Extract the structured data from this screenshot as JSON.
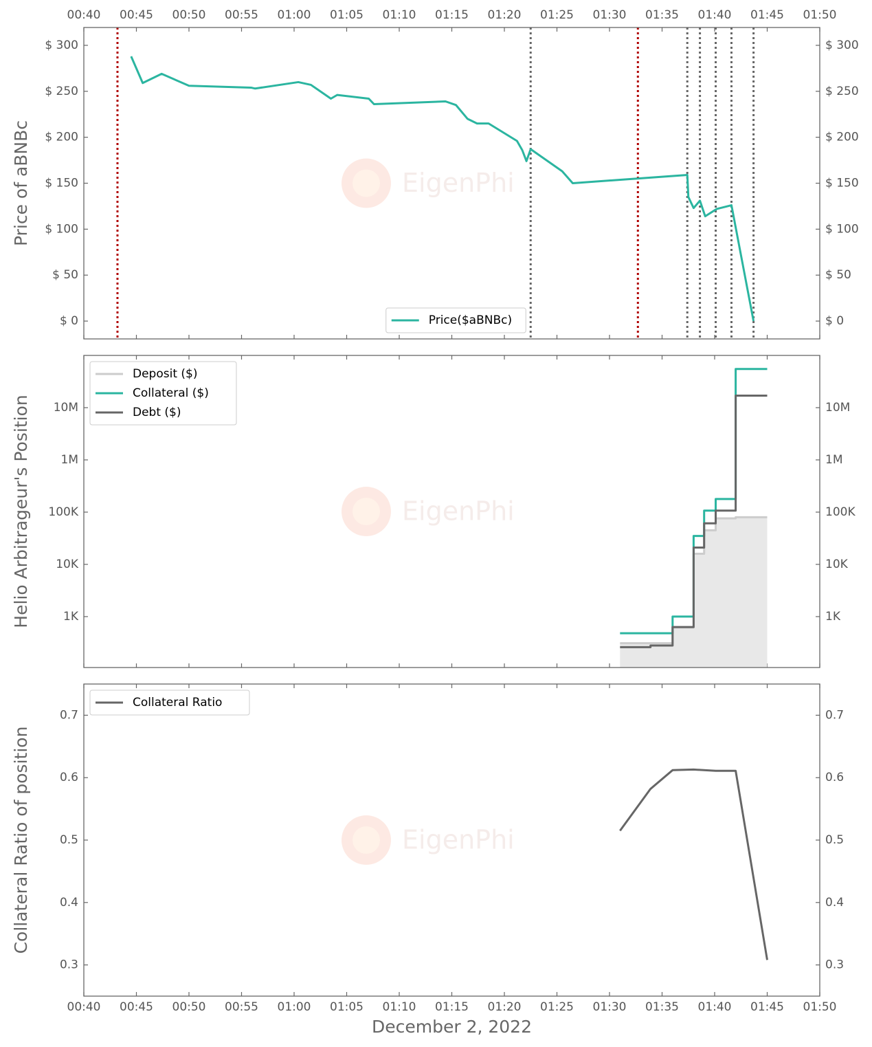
{
  "watermark": "EigenPhi",
  "chart_data": [
    {
      "type": "line",
      "ylabel": "Price of aBNBc",
      "xtick_labels": "top",
      "legend": "lower center",
      "xlim": [
        40,
        110
      ],
      "xticks": [
        {
          "value": 40,
          "label": "00:40"
        },
        {
          "value": 45,
          "label": "00:45"
        },
        {
          "value": 50,
          "label": "00:50"
        },
        {
          "value": 55,
          "label": "00:55"
        },
        {
          "value": 60,
          "label": "01:00"
        },
        {
          "value": 65,
          "label": "01:05"
        },
        {
          "value": 70,
          "label": "01:10"
        },
        {
          "value": 75,
          "label": "01:15"
        },
        {
          "value": 80,
          "label": "01:20"
        },
        {
          "value": 85,
          "label": "01:25"
        },
        {
          "value": 90,
          "label": "01:30"
        },
        {
          "value": 95,
          "label": "01:35"
        },
        {
          "value": 100,
          "label": "01:40"
        },
        {
          "value": 105,
          "label": "01:45"
        },
        {
          "value": 110,
          "label": "01:50"
        }
      ],
      "ylim": [
        -19.4,
        319.4
      ],
      "yticks": [
        {
          "value": 0,
          "label": "$ 0"
        },
        {
          "value": 50,
          "label": "$ 50"
        },
        {
          "value": 100,
          "label": "$ 100"
        },
        {
          "value": 150,
          "label": "$ 150"
        },
        {
          "value": 200,
          "label": "$ 200"
        },
        {
          "value": 250,
          "label": "$ 250"
        },
        {
          "value": 300,
          "label": "$ 300"
        }
      ],
      "x": [
        44.5,
        45.6,
        47.4,
        50.0,
        55.9,
        56.3,
        60.4,
        61.6,
        63.5,
        64.1,
        67.1,
        67.6,
        74.4,
        75.4,
        76.5,
        77.4,
        78.5,
        81.2,
        81.7,
        82.1,
        82.5,
        85.5,
        86.5,
        97.4,
        97.5,
        98.0,
        98.6,
        99.1,
        100.2,
        101.6,
        103.7
      ],
      "series": [
        {
          "name": "Price($aBNBc)",
          "color": "#2bb5a0",
          "values": [
            288,
            259,
            269,
            256,
            254,
            253,
            260,
            257,
            242,
            246,
            242,
            236,
            239,
            235,
            220,
            215,
            215,
            196,
            186,
            174,
            187,
            163,
            150,
            159,
            135,
            123,
            131,
            114,
            122,
            126,
            0
          ]
        }
      ],
      "vlines": [
        {
          "x": 43.2,
          "color": "#b00000"
        },
        {
          "x": 92.7,
          "color": "#b00000"
        },
        {
          "x": 82.5,
          "color": "#666666"
        },
        {
          "x": 97.4,
          "color": "#666666"
        },
        {
          "x": 98.6,
          "color": "#666666"
        },
        {
          "x": 100.1,
          "color": "#666666"
        },
        {
          "x": 101.6,
          "color": "#666666"
        },
        {
          "x": 103.7,
          "color": "#666666"
        }
      ]
    },
    {
      "type": "step",
      "ylabel": "Helio Arbitrageur's Position",
      "yscale": "log",
      "legend": "upper left",
      "xlim": [
        40,
        110
      ],
      "xticks": [
        {
          "value": 40,
          "label": "00:40"
        },
        {
          "value": 45,
          "label": "00:45"
        },
        {
          "value": 50,
          "label": "00:50"
        },
        {
          "value": 55,
          "label": "00:55"
        },
        {
          "value": 60,
          "label": "01:00"
        },
        {
          "value": 65,
          "label": "01:05"
        },
        {
          "value": 70,
          "label": "01:10"
        },
        {
          "value": 75,
          "label": "01:15"
        },
        {
          "value": 80,
          "label": "01:20"
        },
        {
          "value": 85,
          "label": "01:25"
        },
        {
          "value": 90,
          "label": "01:30"
        },
        {
          "value": 95,
          "label": "01:35"
        },
        {
          "value": 100,
          "label": "01:40"
        },
        {
          "value": 105,
          "label": "01:45"
        },
        {
          "value": 110,
          "label": "01:50"
        }
      ],
      "ylim": [
        106,
        100000000
      ],
      "yticks": [
        {
          "value": 1000,
          "label": "1K"
        },
        {
          "value": 10000,
          "label": "10K"
        },
        {
          "value": 100000,
          "label": "100K"
        },
        {
          "value": 1000000,
          "label": "1M"
        },
        {
          "value": 10000000,
          "label": "10M"
        }
      ],
      "x": [
        91.0,
        93.9,
        96.0,
        98.0,
        99.0,
        100.1,
        102.0,
        105.0
      ],
      "series": [
        {
          "name": "Deposit ($)",
          "color": "#cccccc",
          "fill": "#e8e8e8",
          "values": [
            310,
            310,
            620,
            16000,
            45000,
            76000,
            80000,
            80000
          ]
        },
        {
          "name": "Collateral ($)",
          "color": "#2bb5a0",
          "values": [
            480,
            480,
            1000,
            35000,
            107000,
            178000,
            55000000,
            55000000
          ]
        },
        {
          "name": "Debt ($)",
          "color": "#666666",
          "values": [
            260,
            280,
            630,
            21000,
            61000,
            107000,
            17000000,
            17000000
          ]
        }
      ]
    },
    {
      "type": "line",
      "ylabel": "Collateral Ratio of position",
      "xlabel": "December 2, 2022",
      "xtick_labels": "bottom",
      "legend": "upper left",
      "xlim": [
        40,
        110
      ],
      "xticks": [
        {
          "value": 40,
          "label": "00:40"
        },
        {
          "value": 45,
          "label": "00:45"
        },
        {
          "value": 50,
          "label": "00:50"
        },
        {
          "value": 55,
          "label": "00:55"
        },
        {
          "value": 60,
          "label": "01:00"
        },
        {
          "value": 65,
          "label": "01:05"
        },
        {
          "value": 70,
          "label": "01:10"
        },
        {
          "value": 75,
          "label": "01:15"
        },
        {
          "value": 80,
          "label": "01:20"
        },
        {
          "value": 85,
          "label": "01:25"
        },
        {
          "value": 90,
          "label": "01:30"
        },
        {
          "value": 95,
          "label": "01:35"
        },
        {
          "value": 100,
          "label": "01:40"
        },
        {
          "value": 105,
          "label": "01:45"
        },
        {
          "value": 110,
          "label": "01:50"
        }
      ],
      "ylim": [
        0.25,
        0.75
      ],
      "yticks": [
        0.3,
        0.4,
        0.5,
        0.6,
        0.7
      ],
      "x": [
        91.0,
        93.9,
        96.0,
        98.0,
        100.1,
        102.0,
        105.0
      ],
      "series": [
        {
          "name": "Collateral Ratio",
          "color": "#666666",
          "values": [
            0.515,
            0.582,
            0.612,
            0.613,
            0.611,
            0.611,
            0.308
          ]
        }
      ]
    }
  ]
}
